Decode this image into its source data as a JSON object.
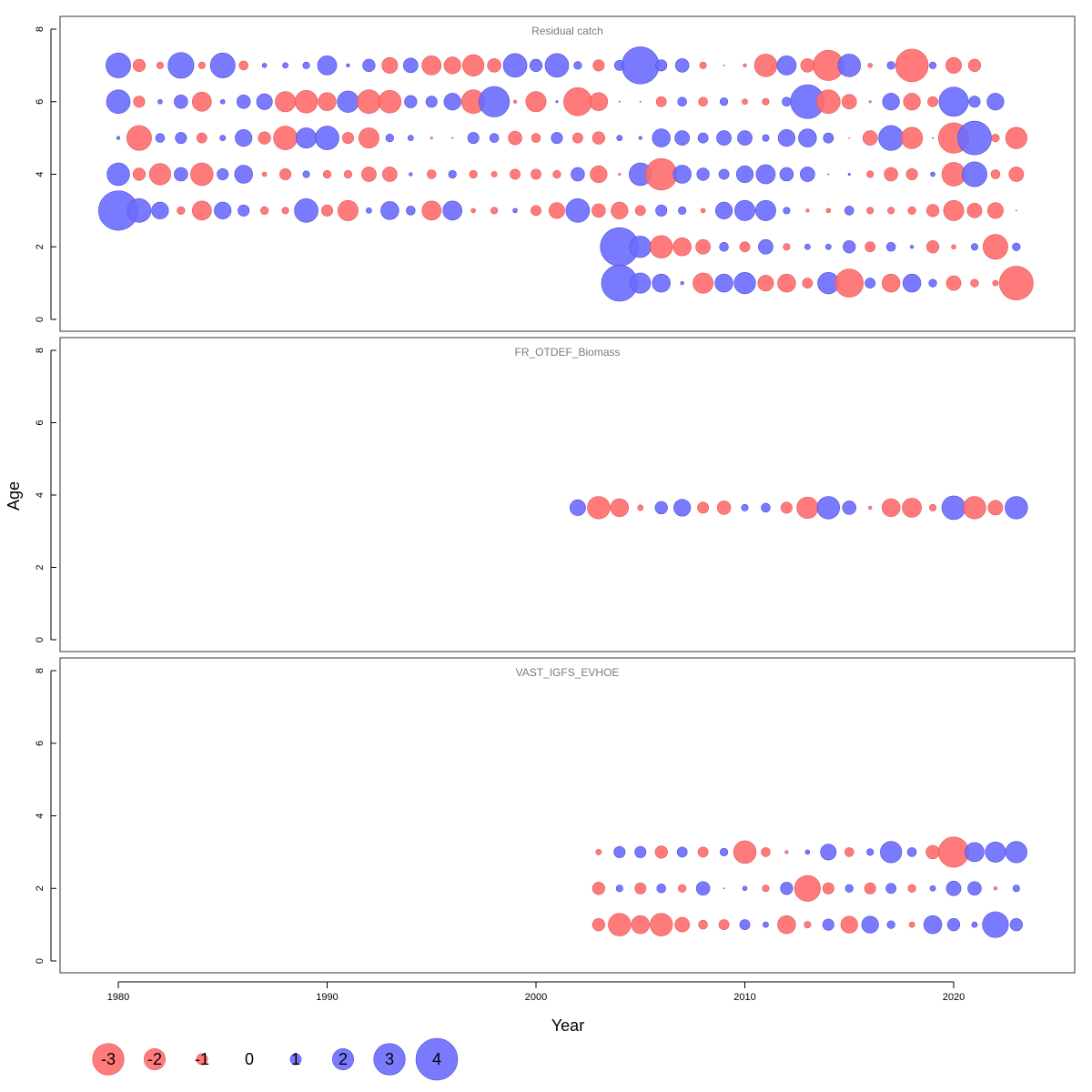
{
  "chart_data": {
    "type": "scatter",
    "subtype": "bubble residual plot",
    "xlabel": "Year",
    "ylabel": "Age",
    "xlim": [
      1977,
      2026
    ],
    "x_ticks": [
      1980,
      1990,
      2000,
      2010,
      2020
    ],
    "ylim": [
      -0.5,
      8.3
    ],
    "y_ticks": [
      0,
      2,
      4,
      6,
      8
    ],
    "colors": {
      "positive": "#6b6bff",
      "negative": "#ff6b6b",
      "positive_stroke": "#4d4dd9",
      "negative_stroke": "#e05a5a"
    },
    "legend": {
      "placement": "bottom-left",
      "entries": [
        {
          "label": "-3",
          "value": -3
        },
        {
          "label": "-2",
          "value": -2
        },
        {
          "label": "-1",
          "value": -1
        },
        {
          "label": "0",
          "value": 0
        },
        {
          "label": "1",
          "value": 1
        },
        {
          "label": "2",
          "value": 2
        },
        {
          "label": "3",
          "value": 3
        },
        {
          "label": "4",
          "value": 4
        }
      ]
    },
    "panels": [
      {
        "title": "Residual catch",
        "series": [
          {
            "age": 7,
            "start_year": 1980,
            "residuals": [
              2.2,
              -1.1,
              -0.6,
              2.3,
              -0.6,
              2.2,
              -0.8,
              0.4,
              0.5,
              0.6,
              1.7,
              0.3,
              1.1,
              -1.4,
              1.3,
              -1.7,
              -1.5,
              -1.9,
              -1.2,
              2.1,
              1.1,
              2.1,
              0.7,
              -1.0,
              0.9,
              3.3,
              1.0,
              1.2,
              -0.6,
              0.1,
              -0.3,
              -2.0,
              1.7,
              -1.2,
              -2.7,
              2.0,
              -0.4,
              0.7,
              -2.9,
              0.6,
              -1.4,
              -1.1
            ]
          },
          {
            "age": 6,
            "start_year": 1980,
            "residuals": [
              2.1,
              -1.0,
              0.4,
              1.2,
              -1.7,
              0.4,
              1.2,
              1.4,
              -1.8,
              -2.0,
              -1.6,
              1.9,
              -2.1,
              -2.0,
              1.1,
              1.0,
              1.5,
              -2.1,
              2.7,
              -0.3,
              -1.8,
              0.2,
              -2.5,
              -1.6,
              0.1,
              0.0,
              -0.9,
              0.8,
              -0.8,
              0.7,
              -0.5,
              -0.6,
              0.8,
              3.0,
              -2.1,
              -1.3,
              -0.2,
              1.5,
              -1.5,
              -0.9,
              2.6,
              1.0,
              1.5
            ]
          },
          {
            "age": 5,
            "start_year": 1980,
            "residuals": [
              0.3,
              -2.2,
              0.8,
              1.0,
              -0.9,
              0.5,
              1.5,
              -1.1,
              -2.1,
              1.8,
              2.1,
              -1.0,
              -1.8,
              0.7,
              0.5,
              -0.2,
              0.1,
              1.0,
              0.8,
              -1.2,
              -0.8,
              1.0,
              -0.9,
              -1.1,
              0.5,
              0.3,
              1.6,
              1.3,
              0.9,
              1.3,
              1.3,
              0.6,
              1.5,
              1.6,
              0.9,
              -0.1,
              -1.3,
              2.2,
              -1.9,
              0.0,
              -2.7,
              3.0,
              -0.7,
              -1.9
            ]
          },
          {
            "age": 4,
            "start_year": 1980,
            "residuals": [
              2.0,
              -1.1,
              -1.9,
              1.2,
              -2.0,
              1.0,
              1.6,
              -0.4,
              -1.0,
              0.6,
              -0.7,
              -0.7,
              -1.3,
              -1.3,
              0.3,
              -0.8,
              0.7,
              -0.7,
              -0.5,
              -0.9,
              -0.9,
              -0.7,
              1.2,
              -1.5,
              -0.2,
              2.0,
              -2.8,
              1.6,
              1.1,
              0.9,
              1.5,
              1.7,
              1.2,
              1.3,
              0.1,
              0.2,
              -0.6,
              -1.2,
              -1.0,
              0.4,
              -2.1,
              2.2,
              -0.8,
              -1.3
            ]
          },
          {
            "age": 3,
            "start_year": 1980,
            "residuals": [
              3.5,
              2.1,
              1.5,
              -0.7,
              -1.7,
              1.5,
              1.0,
              -0.7,
              -0.6,
              2.1,
              -1.0,
              -1.8,
              0.5,
              1.6,
              0.8,
              -1.7,
              1.7,
              -0.4,
              -0.6,
              0.4,
              -0.9,
              -1.4,
              2.1,
              -1.2,
              -1.5,
              -0.9,
              1.0,
              0.7,
              -0.4,
              1.5,
              1.8,
              1.8,
              0.6,
              -0.3,
              -0.4,
              0.8,
              -0.6,
              -0.6,
              -0.7,
              -1.1,
              -1.8,
              -1.3,
              -1.4,
              -0.1
            ]
          },
          {
            "age": 2,
            "start_year": 2004,
            "residuals": [
              3.4,
              1.9,
              -2.0,
              -1.6,
              -1.3,
              0.8,
              -0.9,
              1.3,
              -0.6,
              0.5,
              0.5,
              1.1,
              -0.9,
              0.8,
              0.3,
              -1.1,
              -0.4,
              0.6,
              -2.2,
              0.7
            ]
          },
          {
            "age": 1,
            "start_year": 2004,
            "residuals": [
              3.2,
              1.8,
              1.6,
              0.3,
              -1.8,
              1.6,
              1.9,
              -1.4,
              -1.6,
              -0.9,
              1.9,
              -2.5,
              0.9,
              -1.6,
              1.6,
              0.7,
              -1.3,
              -0.7,
              -0.5,
              -3.0
            ]
          }
        ]
      },
      {
        "title": "FR_OTDEF_Biomass",
        "series": [
          {
            "age": 3.65,
            "start_year": 2002,
            "residuals": [
              1.4,
              -2.0,
              -1.6,
              -0.5,
              1.1,
              1.5,
              -1.0,
              -1.2,
              0.6,
              0.8,
              -1.0,
              -1.9,
              2.0,
              1.2,
              -0.3,
              -1.6,
              -1.7,
              -0.6,
              2.1,
              -2.0,
              -1.3,
              2.0
            ]
          }
        ]
      },
      {
        "title": "VAST_IGFS_EVHOE",
        "series": [
          {
            "age": 3,
            "start_year": 2003,
            "residuals": [
              -0.5,
              1.0,
              1.0,
              -1.1,
              0.9,
              -0.9,
              0.7,
              -2.0,
              -0.8,
              -0.3,
              0.4,
              1.4,
              -0.8,
              0.6,
              1.9,
              0.8,
              -1.2,
              -2.7,
              1.7,
              1.8,
              1.9
            ]
          },
          {
            "age": 2,
            "start_year": 2003,
            "residuals": [
              -1.1,
              0.6,
              -1.0,
              0.8,
              -0.7,
              1.2,
              0.1,
              0.4,
              -0.6,
              1.1,
              -2.3,
              -1.0,
              0.7,
              -1.0,
              0.9,
              -0.7,
              0.5,
              1.3,
              1.2,
              -0.3,
              0.6
            ]
          },
          {
            "age": 1,
            "start_year": 2003,
            "residuals": [
              -1.1,
              -2.0,
              -1.6,
              -2.0,
              -1.3,
              -0.8,
              -0.9,
              0.9,
              0.5,
              -1.6,
              -0.6,
              1.0,
              -1.5,
              1.5,
              0.7,
              -0.5,
              1.6,
              1.1,
              0.5,
              2.3,
              1.1
            ]
          }
        ]
      }
    ]
  }
}
